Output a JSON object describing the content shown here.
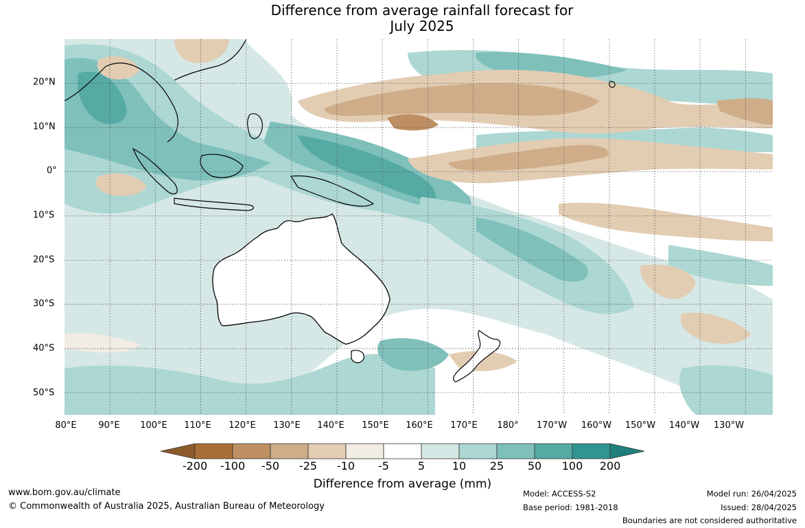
{
  "title": {
    "line1": "Difference from average rainfall forecast for",
    "line2": "July 2025"
  },
  "map": {
    "lon_labels": [
      "80°E",
      "90°E",
      "100°E",
      "110°E",
      "120°E",
      "130°E",
      "140°E",
      "150°E",
      "160°E",
      "170°E",
      "180°",
      "170°W",
      "160°W",
      "150°W",
      "140°W",
      "130°W"
    ],
    "lat_labels": [
      "20°N",
      "10°N",
      "0°",
      "10°S",
      "20°S",
      "30°S",
      "40°S",
      "50°S"
    ],
    "lon_range": [
      80,
      236
    ],
    "lat_range": [
      -55,
      30
    ],
    "gridlines": true
  },
  "legend": {
    "ticks": [
      "-200",
      "-100",
      "-50",
      "-25",
      "-10",
      "-5",
      "5",
      "10",
      "25",
      "50",
      "100",
      "200"
    ],
    "colors": [
      "#a87036",
      "#bd8f62",
      "#cfad89",
      "#e2cdb3",
      "#f1ece4",
      "#ffffff",
      "#d5e8e6",
      "#acd7d3",
      "#7fc0bb",
      "#56aaa4",
      "#2f9590"
    ],
    "extend_low_color": "#8c5a2a",
    "extend_high_color": "#1e7f7b",
    "label": "Difference from average (mm)"
  },
  "footer": {
    "url": "www.bom.gov.au/climate",
    "copyright": "© Commonwealth of Australia 2025, Australian Bureau of Meteorology",
    "model": "Model: ACCESS-S2",
    "base_period": "Base period: 1981-2018",
    "model_run": "Model run: 26/04/2025",
    "issued": "Issued: 28/04/2025",
    "disclaimer": "Boundaries are not considered authoritative"
  }
}
